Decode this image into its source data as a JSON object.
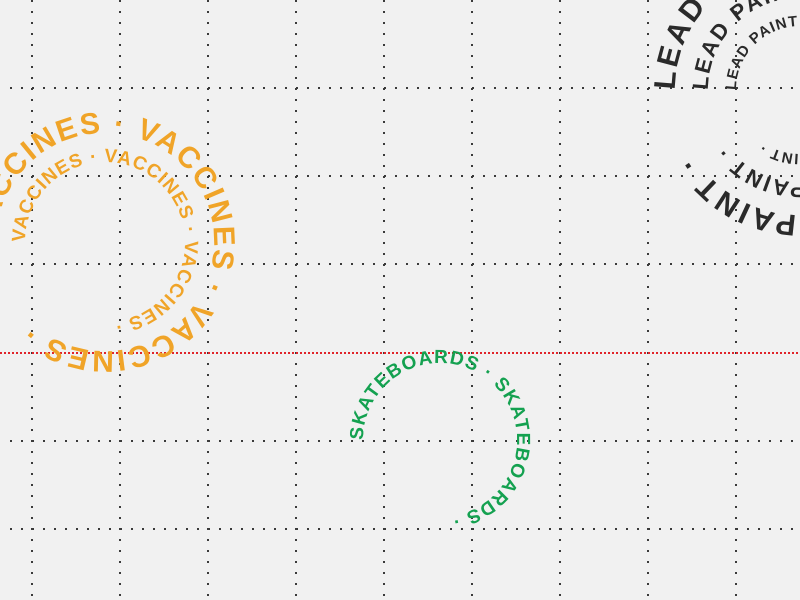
{
  "colors": {
    "background": "#f1f1f1",
    "grid_dots": "#3a3a3a",
    "guide_line": "#e0242a",
    "vaccines": "#f0a428",
    "skateboards": "#14a150",
    "lead_paint": "#2a2a2a"
  },
  "rings": {
    "vaccines_outer": "VACCINES · VACCINES · VACCINES · ",
    "vaccines_inner": "VACCINES · VACCINES · VACCINES · ",
    "skateboards": "SKATEBOARDS · SKATEBOARDS · ",
    "lead_outer": "LEAD PAINT · LEAD PAINT · LEAD PAINT · ",
    "lead_mid": "LEAD PAINT · LEAD PAINT · LEAD PAINT · ",
    "lead_inner": "LEAD PAINT · LEAD PAINT · LEAD PAINT · "
  }
}
